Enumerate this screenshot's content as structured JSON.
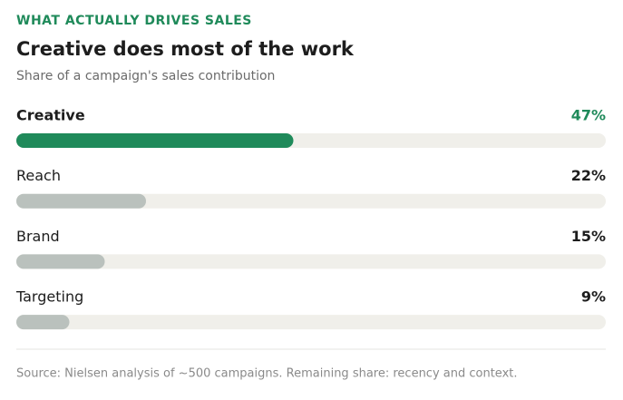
{
  "chart_data": {
    "type": "bar",
    "orientation": "horizontal",
    "kicker": "WHAT ACTUALLY DRIVES SALES",
    "title": "Creative does most of the work",
    "subtitle": "Share of a campaign's sales contribution",
    "categories": [
      "Creative",
      "Reach",
      "Brand",
      "Targeting"
    ],
    "values": [
      47,
      22,
      15,
      9
    ],
    "value_labels": [
      "47%",
      "22%",
      "15%",
      "9%"
    ],
    "color": "#bac1bd",
    "colors": [
      "#1f8a5a",
      "#bac1bd",
      "#bac1bd",
      "#bac1bd"
    ],
    "xlim": [
      0,
      100
    ],
    "source": "Source: Nielsen analysis of ~500 campaigns. Remaining share: recency and context."
  }
}
